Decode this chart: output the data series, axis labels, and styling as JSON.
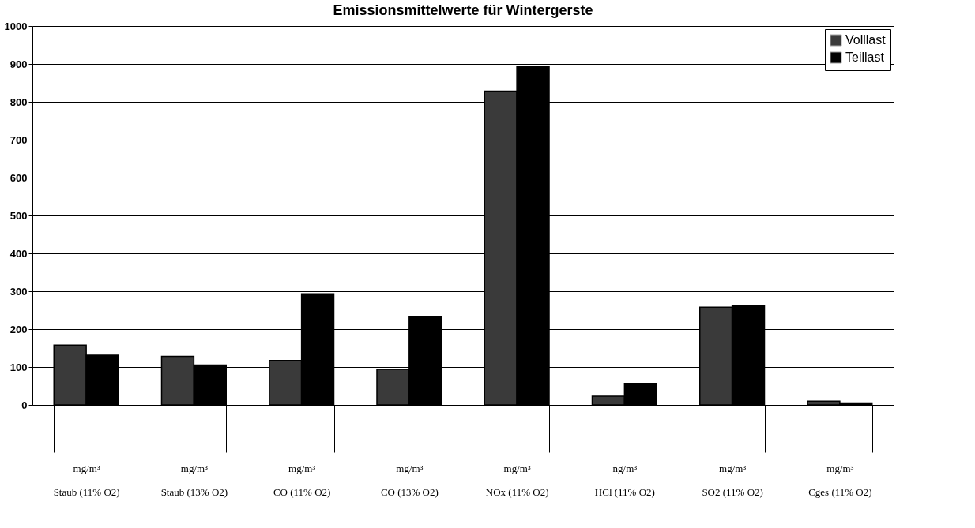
{
  "chart_data": {
    "type": "bar",
    "title": "Emissionsmittelwerte für Wintergerste",
    "categories": [
      "mg/m³\nStaub (11% O2)",
      "mg/m³\nStaub (13% O2)",
      "mg/m³\nCO (11% O2)",
      "mg/m³\nCO (13% O2)",
      "mg/m³\nNOx (11% O2)",
      "ng/m³\nHCl (11% O2)",
      "mg/m³\nSO2 (11% O2)",
      "mg/m³\nCges (11% O2)"
    ],
    "series": [
      {
        "name": "Volllast",
        "color": "#3a3a3a",
        "values": [
          158,
          128,
          117,
          94,
          828,
          23,
          258,
          10
        ]
      },
      {
        "name": "Teillast",
        "color": "#000000",
        "values": [
          131,
          105,
          293,
          234,
          893,
          57,
          261,
          5
        ]
      }
    ],
    "ylim": [
      0,
      1000
    ],
    "yticks": [
      0,
      100,
      200,
      300,
      400,
      500,
      600,
      700,
      800,
      900,
      1000
    ],
    "grid": "y",
    "legend": "top right"
  }
}
